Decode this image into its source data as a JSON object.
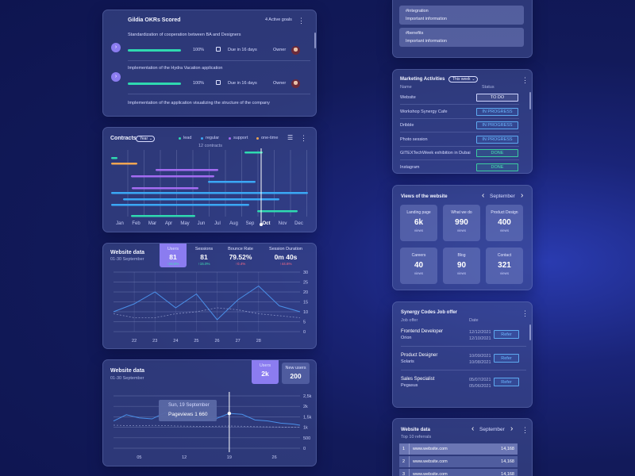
{
  "okr": {
    "title": "Gildia OKRs Scored",
    "active_goals": "4 Active goals",
    "goals": [
      {
        "name": "Standardization of cooperation between BA and Designers",
        "progress_pct": "100%",
        "progress": 1.0,
        "due": "Due in 16 days",
        "owner_label": "Owner"
      },
      {
        "name": "Implementation of the Hydra Vacation application",
        "progress_pct": "100%",
        "progress": 1.0,
        "due": "Due in 16 days",
        "owner_label": "Owner"
      },
      {
        "name": "Implementation of the application visualizing the structure of the company"
      }
    ]
  },
  "contracts": {
    "title": "Contracts",
    "period": "Year",
    "count_label": "12 contracts",
    "legend": [
      {
        "name": "lead",
        "color": "#2fd9b0"
      },
      {
        "name": "regular",
        "color": "#3aa8f5"
      },
      {
        "name": "support",
        "color": "#a46cf2"
      },
      {
        "name": "one-time",
        "color": "#f0a552"
      }
    ],
    "months": [
      "Jan",
      "Feb",
      "Mar",
      "Apr",
      "May",
      "Jun",
      "Jul",
      "Aug",
      "Sep",
      "Oct",
      "Nov",
      "Dec"
    ],
    "active_month": "Oct"
  },
  "web1": {
    "title": "Website data",
    "range": "01-30 September",
    "stats": [
      {
        "label": "Users",
        "value": "81",
        "change": "↑24.6%",
        "dir": "up"
      },
      {
        "label": "Sessions",
        "value": "81",
        "change": "↑15.0%",
        "dir": "up"
      },
      {
        "label": "Bounce Rate",
        "value": "79.52%",
        "change": "↑0.4%",
        "dir": "down"
      },
      {
        "label": "Session Duration",
        "value": "0m 40s",
        "change": "↑44.6%",
        "dir": "down"
      }
    ]
  },
  "web2": {
    "title": "Website data",
    "range": "01-30 September",
    "stats": [
      {
        "label": "Users",
        "value": "2k"
      },
      {
        "label": "New users",
        "value": "200"
      }
    ],
    "tooltip_date": "Sun, 19 September",
    "tooltip_value": "Pageviews 1 660"
  },
  "tags": [
    {
      "tag": "#integration",
      "msg": "Important information"
    },
    {
      "tag": "#benefits",
      "msg": "Important information"
    }
  ],
  "marketing": {
    "title": "Marketing Activities",
    "period": "This week",
    "col_name": "Name",
    "col_status": "Status",
    "rows": [
      {
        "name": "Website",
        "status": "TO DO",
        "kind": "todo"
      },
      {
        "name": "Workshop Synergy Cafe",
        "status": "IN PROGRESS",
        "kind": "prog"
      },
      {
        "name": "Dribble",
        "status": "IN PROGRESS",
        "kind": "prog"
      },
      {
        "name": "Photo session",
        "status": "IN PROGRESS",
        "kind": "prog"
      },
      {
        "name": "GITEXTechWeek exhibition in Dubai",
        "status": "DONE",
        "kind": "done"
      },
      {
        "name": "Instagram",
        "status": "DONE",
        "kind": "done"
      }
    ]
  },
  "views": {
    "title": "Views of the website",
    "month": "September",
    "tiles": [
      {
        "label": "Landing page",
        "value": "6k",
        "unit": "views"
      },
      {
        "label": "What we do",
        "value": "990",
        "unit": "views"
      },
      {
        "label": "Product Design",
        "value": "400",
        "unit": "views"
      },
      {
        "label": "Careers",
        "value": "40",
        "unit": "views"
      },
      {
        "label": "Blog",
        "value": "90",
        "unit": "views"
      },
      {
        "label": "Contact",
        "value": "321",
        "unit": "views"
      }
    ]
  },
  "jobs": {
    "title": "Synergy Codes Job offer",
    "col_offer": "Job offer",
    "col_date": "Date",
    "button": "Refer",
    "rows": [
      {
        "title": "Frontend Developer",
        "client": "Orion",
        "d1": "12/12/2021",
        "d2": "12/10/2021"
      },
      {
        "title": "Product Designer",
        "client": "Solaris",
        "d1": "10/09/2021",
        "d2": "10/08/2021"
      },
      {
        "title": "Sales Specialist",
        "client": "Pegasus",
        "d1": "05/07/2021",
        "d2": "05/06/2021"
      }
    ]
  },
  "web3": {
    "title": "Website data",
    "subtitle": "Top 10 referrals",
    "month": "September",
    "rows": [
      {
        "n": "1",
        "url": "www.website.com",
        "v": "14,168"
      },
      {
        "n": "2",
        "url": "www.website.com",
        "v": "14,168"
      },
      {
        "n": "3",
        "url": "www.website.com",
        "v": "14,168"
      }
    ]
  },
  "chart_data": [
    {
      "type": "line",
      "title": "Website data",
      "x": [
        21,
        22,
        23,
        24,
        25,
        26,
        27,
        28,
        29,
        30
      ],
      "xticks": [
        "22",
        "23",
        "24",
        "25",
        "26",
        "27",
        "28"
      ],
      "yticks": [
        "0",
        "5",
        "10",
        "15",
        "20",
        "25",
        "30"
      ],
      "ylim": [
        0,
        30
      ],
      "series": [
        {
          "values": [
            10,
            14,
            20,
            12,
            19,
            6,
            16,
            23,
            13,
            10
          ],
          "style": "solid"
        },
        {
          "values": [
            9,
            7,
            7,
            9,
            10,
            12,
            11,
            9,
            8,
            7
          ],
          "style": "dashed"
        }
      ],
      "grid": true
    },
    {
      "type": "line",
      "title": "Website data",
      "x": [
        1,
        3,
        5,
        7,
        9,
        11,
        13,
        15,
        17,
        19,
        21,
        23,
        25,
        27,
        29,
        30
      ],
      "xticks": [
        "05",
        "12",
        "19",
        "26"
      ],
      "yticks": [
        "0",
        "500",
        "1k",
        "1,5k",
        "2k",
        "2,5k"
      ],
      "ylim": [
        0,
        2500
      ],
      "series": [
        {
          "values": [
            1300,
            1600,
            1450,
            1400,
            1700,
            1400,
            1380,
            1350,
            1420,
            1660,
            1620,
            1350,
            1300,
            1200,
            1150,
            1100
          ],
          "style": "solid"
        },
        {
          "values": [
            1100,
            1080,
            1070,
            1090,
            1080,
            1060,
            1050,
            1040,
            1050,
            1060,
            1050,
            1030,
            1020,
            1010,
            1000,
            1000
          ],
          "style": "dashed"
        }
      ]
    }
  ]
}
